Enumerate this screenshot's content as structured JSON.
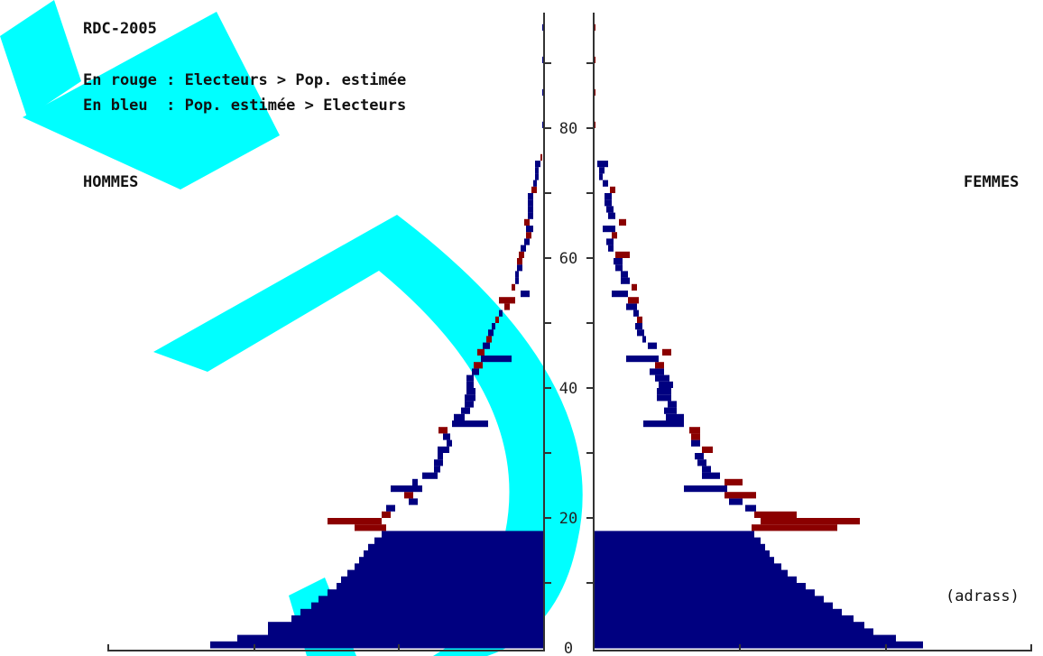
{
  "chart_data": {
    "type": "bar",
    "title": "RDC-2005",
    "legend": [
      "En rouge : Electeurs > Pop. estimée",
      "En bleu  : Pop. estimée > Electeurs"
    ],
    "left_label": "HOMMES",
    "right_label": "FEMMES",
    "source": "(adrass)",
    "yticks": [
      0,
      20,
      40,
      60,
      80
    ],
    "ylim": [
      0,
      98
    ],
    "colors": {
      "red": "#8b0000",
      "blue": "#000080",
      "watermark": "#00ffff"
    },
    "watermark": "AD",
    "hommes_blue_base": [
      [
        0,
        370
      ],
      [
        1,
        340
      ],
      [
        2,
        306
      ],
      [
        3,
        306
      ],
      [
        4,
        280
      ],
      [
        5,
        270
      ],
      [
        6,
        258
      ],
      [
        7,
        250
      ],
      [
        8,
        240
      ],
      [
        9,
        230
      ],
      [
        10,
        225
      ],
      [
        11,
        218
      ],
      [
        12,
        210
      ],
      [
        13,
        205
      ],
      [
        14,
        200
      ],
      [
        15,
        195
      ],
      [
        16,
        188
      ],
      [
        17,
        180
      ]
    ],
    "femmes_blue_base": [
      [
        0,
        365
      ],
      [
        1,
        335
      ],
      [
        2,
        310
      ],
      [
        3,
        300
      ],
      [
        4,
        288
      ],
      [
        5,
        275
      ],
      [
        6,
        265
      ],
      [
        7,
        255
      ],
      [
        8,
        245
      ],
      [
        9,
        235
      ],
      [
        10,
        225
      ],
      [
        11,
        215
      ],
      [
        12,
        208
      ],
      [
        13,
        200
      ],
      [
        14,
        195
      ],
      [
        15,
        190
      ],
      [
        16,
        185
      ],
      [
        17,
        178
      ]
    ],
    "hommes_segments": [
      {
        "age": 18,
        "from": 175,
        "to": 210,
        "c": "r"
      },
      {
        "age": 19,
        "from": 180,
        "to": 240,
        "c": "r"
      },
      {
        "age": 20,
        "from": 170,
        "to": 180,
        "c": "r"
      },
      {
        "age": 21,
        "from": 165,
        "to": 175,
        "c": "b"
      },
      {
        "age": 22,
        "from": 140,
        "to": 150,
        "c": "b"
      },
      {
        "age": 23,
        "from": 145,
        "to": 155,
        "c": "r"
      },
      {
        "age": 24,
        "from": 135,
        "to": 170,
        "c": "b"
      },
      {
        "age": 25,
        "from": 140,
        "to": 146,
        "c": "b"
      },
      {
        "age": 26,
        "from": 118,
        "to": 135,
        "c": "b"
      },
      {
        "age": 27,
        "from": 115,
        "to": 122,
        "c": "b"
      },
      {
        "age": 28,
        "from": 112,
        "to": 122,
        "c": "b"
      },
      {
        "age": 29,
        "from": 112,
        "to": 118,
        "c": "b"
      },
      {
        "age": 30,
        "from": 105,
        "to": 118,
        "c": "b"
      },
      {
        "age": 31,
        "from": 102,
        "to": 108,
        "c": "b"
      },
      {
        "age": 32,
        "from": 104,
        "to": 112,
        "c": "b"
      },
      {
        "age": 33,
        "from": 107,
        "to": 117,
        "c": "r"
      },
      {
        "age": 34,
        "from": 62,
        "to": 102,
        "c": "b"
      },
      {
        "age": 35,
        "from": 88,
        "to": 100,
        "c": "b"
      },
      {
        "age": 36,
        "from": 82,
        "to": 92,
        "c": "b"
      },
      {
        "age": 37,
        "from": 78,
        "to": 88,
        "c": "b"
      },
      {
        "age": 38,
        "from": 76,
        "to": 88,
        "c": "b"
      },
      {
        "age": 39,
        "from": 76,
        "to": 86,
        "c": "b"
      },
      {
        "age": 40,
        "from": 78,
        "to": 86,
        "c": "b"
      },
      {
        "age": 41,
        "from": 78,
        "to": 86,
        "c": "b"
      },
      {
        "age": 42,
        "from": 72,
        "to": 80,
        "c": "b"
      },
      {
        "age": 43,
        "from": 68,
        "to": 78,
        "c": "r"
      },
      {
        "age": 44,
        "from": 36,
        "to": 70,
        "c": "b"
      },
      {
        "age": 45,
        "from": 66,
        "to": 74,
        "c": "r"
      },
      {
        "age": 46,
        "from": 60,
        "to": 68,
        "c": "b"
      },
      {
        "age": 47,
        "from": 58,
        "to": 64,
        "c": "r"
      },
      {
        "age": 48,
        "from": 56,
        "to": 62,
        "c": "b"
      },
      {
        "age": 49,
        "from": 54,
        "to": 58,
        "c": "b"
      },
      {
        "age": 50,
        "from": 50,
        "to": 54,
        "c": "r"
      },
      {
        "age": 51,
        "from": 46,
        "to": 50,
        "c": "b"
      },
      {
        "age": 52,
        "from": 38,
        "to": 44,
        "c": "r"
      },
      {
        "age": 53,
        "from": 32,
        "to": 50,
        "c": "r"
      },
      {
        "age": 54,
        "from": 16,
        "to": 26,
        "c": "b"
      },
      {
        "age": 55,
        "from": 32,
        "to": 36,
        "c": "r"
      },
      {
        "age": 56,
        "from": 28,
        "to": 32,
        "c": "b"
      },
      {
        "age": 57,
        "from": 28,
        "to": 32,
        "c": "b"
      },
      {
        "age": 58,
        "from": 24,
        "to": 30,
        "c": "b"
      },
      {
        "age": 59,
        "from": 24,
        "to": 30,
        "c": "r"
      },
      {
        "age": 60,
        "from": 22,
        "to": 28,
        "c": "r"
      },
      {
        "age": 61,
        "from": 20,
        "to": 26,
        "c": "b"
      },
      {
        "age": 62,
        "from": 16,
        "to": 22,
        "c": "b"
      },
      {
        "age": 63,
        "from": 14,
        "to": 20,
        "c": "r"
      },
      {
        "age": 64,
        "from": 12,
        "to": 20,
        "c": "b"
      },
      {
        "age": 65,
        "from": 16,
        "to": 22,
        "c": "r"
      },
      {
        "age": 66,
        "from": 12,
        "to": 18,
        "c": "b"
      },
      {
        "age": 67,
        "from": 12,
        "to": 18,
        "c": "b"
      },
      {
        "age": 68,
        "from": 12,
        "to": 18,
        "c": "b"
      },
      {
        "age": 69,
        "from": 12,
        "to": 18,
        "c": "b"
      },
      {
        "age": 70,
        "from": 8,
        "to": 14,
        "c": "r"
      },
      {
        "age": 71,
        "from": 8,
        "to": 12,
        "c": "b"
      },
      {
        "age": 72,
        "from": 6,
        "to": 10,
        "c": "b"
      },
      {
        "age": 73,
        "from": 6,
        "to": 10,
        "c": "b"
      },
      {
        "age": 74,
        "from": 4,
        "to": 10,
        "c": "b"
      },
      {
        "age": 75,
        "from": 2,
        "to": 4,
        "c": "r"
      },
      {
        "age": 80,
        "from": 0,
        "to": 2,
        "c": "b"
      },
      {
        "age": 85,
        "from": 0,
        "to": 2,
        "c": "b"
      },
      {
        "age": 90,
        "from": 0,
        "to": 2,
        "c": "b"
      },
      {
        "age": 95,
        "from": 0,
        "to": 2,
        "c": "b"
      }
    ],
    "femmes_segments": [
      {
        "age": 18,
        "from": 175,
        "to": 270,
        "c": "r"
      },
      {
        "age": 19,
        "from": 185,
        "to": 295,
        "c": "r"
      },
      {
        "age": 20,
        "from": 178,
        "to": 225,
        "c": "r"
      },
      {
        "age": 21,
        "from": 168,
        "to": 180,
        "c": "b"
      },
      {
        "age": 22,
        "from": 150,
        "to": 165,
        "c": "b"
      },
      {
        "age": 23,
        "from": 145,
        "to": 180,
        "c": "r"
      },
      {
        "age": 24,
        "from": 100,
        "to": 148,
        "c": "b"
      },
      {
        "age": 25,
        "from": 145,
        "to": 165,
        "c": "r"
      },
      {
        "age": 26,
        "from": 120,
        "to": 140,
        "c": "b"
      },
      {
        "age": 27,
        "from": 120,
        "to": 130,
        "c": "b"
      },
      {
        "age": 28,
        "from": 115,
        "to": 125,
        "c": "b"
      },
      {
        "age": 29,
        "from": 112,
        "to": 122,
        "c": "b"
      },
      {
        "age": 30,
        "from": 120,
        "to": 132,
        "c": "r"
      },
      {
        "age": 31,
        "from": 108,
        "to": 118,
        "c": "b"
      },
      {
        "age": 32,
        "from": 108,
        "to": 118,
        "c": "r"
      },
      {
        "age": 33,
        "from": 106,
        "to": 118,
        "c": "r"
      },
      {
        "age": 34,
        "from": 55,
        "to": 100,
        "c": "b"
      },
      {
        "age": 35,
        "from": 80,
        "to": 100,
        "c": "b"
      },
      {
        "age": 36,
        "from": 78,
        "to": 92,
        "c": "b"
      },
      {
        "age": 37,
        "from": 82,
        "to": 92,
        "c": "b"
      },
      {
        "age": 38,
        "from": 70,
        "to": 86,
        "c": "b"
      },
      {
        "age": 39,
        "from": 70,
        "to": 86,
        "c": "b"
      },
      {
        "age": 40,
        "from": 72,
        "to": 88,
        "c": "b"
      },
      {
        "age": 41,
        "from": 68,
        "to": 84,
        "c": "b"
      },
      {
        "age": 42,
        "from": 62,
        "to": 78,
        "c": "b"
      },
      {
        "age": 43,
        "from": 68,
        "to": 78,
        "c": "r"
      },
      {
        "age": 44,
        "from": 36,
        "to": 72,
        "c": "b"
      },
      {
        "age": 45,
        "from": 76,
        "to": 86,
        "c": "r"
      },
      {
        "age": 46,
        "from": 60,
        "to": 70,
        "c": "b"
      },
      {
        "age": 47,
        "from": 54,
        "to": 58,
        "c": "b"
      },
      {
        "age": 48,
        "from": 48,
        "to": 56,
        "c": "b"
      },
      {
        "age": 49,
        "from": 46,
        "to": 54,
        "c": "b"
      },
      {
        "age": 50,
        "from": 48,
        "to": 54,
        "c": "r"
      },
      {
        "age": 51,
        "from": 44,
        "to": 50,
        "c": "b"
      },
      {
        "age": 52,
        "from": 36,
        "to": 48,
        "c": "b"
      },
      {
        "age": 53,
        "from": 38,
        "to": 50,
        "c": "r"
      },
      {
        "age": 54,
        "from": 20,
        "to": 38,
        "c": "b"
      },
      {
        "age": 55,
        "from": 42,
        "to": 48,
        "c": "r"
      },
      {
        "age": 56,
        "from": 30,
        "to": 40,
        "c": "b"
      },
      {
        "age": 57,
        "from": 30,
        "to": 38,
        "c": "b"
      },
      {
        "age": 58,
        "from": 24,
        "to": 32,
        "c": "b"
      },
      {
        "age": 59,
        "from": 22,
        "to": 32,
        "c": "b"
      },
      {
        "age": 60,
        "from": 24,
        "to": 40,
        "c": "r"
      },
      {
        "age": 61,
        "from": 16,
        "to": 22,
        "c": "b"
      },
      {
        "age": 62,
        "from": 14,
        "to": 22,
        "c": "b"
      },
      {
        "age": 63,
        "from": 20,
        "to": 26,
        "c": "r"
      },
      {
        "age": 64,
        "from": 10,
        "to": 24,
        "c": "b"
      },
      {
        "age": 65,
        "from": 28,
        "to": 36,
        "c": "r"
      },
      {
        "age": 66,
        "from": 16,
        "to": 24,
        "c": "b"
      },
      {
        "age": 67,
        "from": 14,
        "to": 22,
        "c": "b"
      },
      {
        "age": 68,
        "from": 12,
        "to": 20,
        "c": "b"
      },
      {
        "age": 69,
        "from": 12,
        "to": 20,
        "c": "b"
      },
      {
        "age": 70,
        "from": 18,
        "to": 24,
        "c": "r"
      },
      {
        "age": 71,
        "from": 10,
        "to": 16,
        "c": "b"
      },
      {
        "age": 72,
        "from": 6,
        "to": 10,
        "c": "b"
      },
      {
        "age": 73,
        "from": 6,
        "to": 12,
        "c": "b"
      },
      {
        "age": 74,
        "from": 4,
        "to": 16,
        "c": "b"
      },
      {
        "age": 80,
        "from": 0,
        "to": 2,
        "c": "r"
      },
      {
        "age": 85,
        "from": 0,
        "to": 2,
        "c": "r"
      },
      {
        "age": 90,
        "from": 0,
        "to": 2,
        "c": "r"
      },
      {
        "age": 95,
        "from": 0,
        "to": 2,
        "c": "r"
      }
    ]
  }
}
